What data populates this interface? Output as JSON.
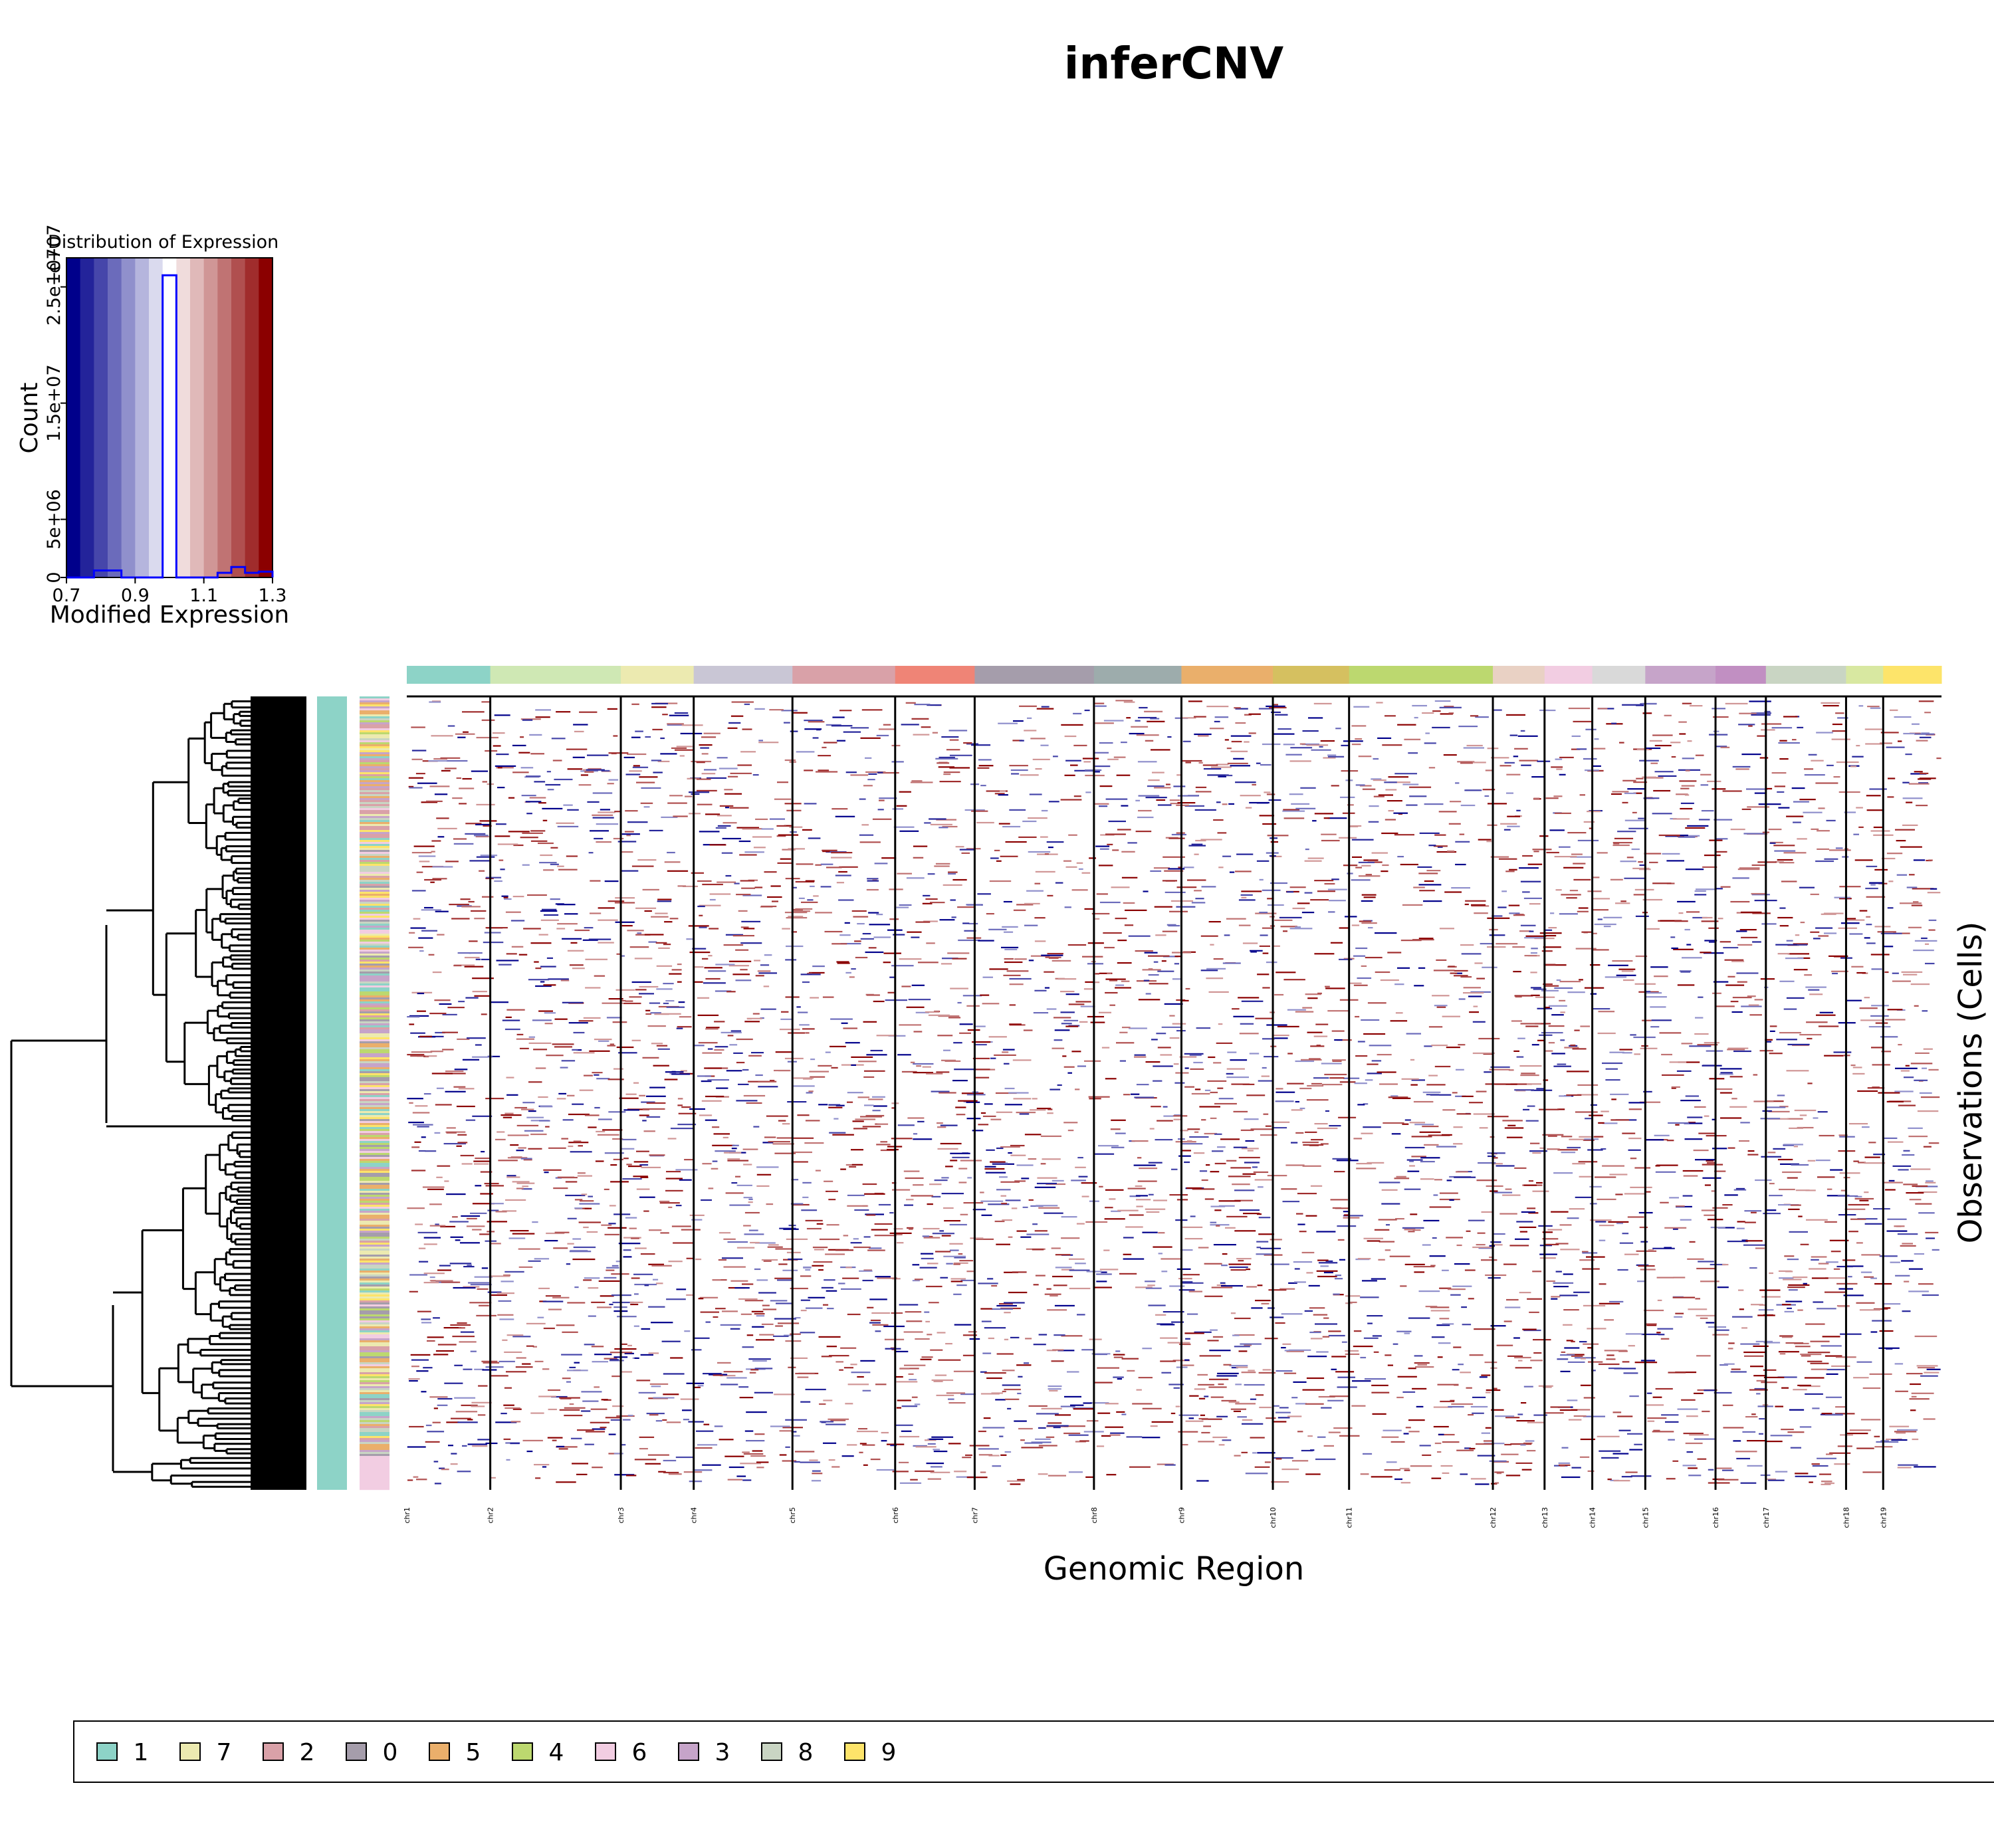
{
  "chart_data": [
    {
      "type": "bar",
      "title": "Distribution of Expression",
      "xlabel": "Modified Expression",
      "ylabel": "Count",
      "xlim": [
        0.7,
        1.3
      ],
      "ylim": [
        0,
        27500000
      ],
      "x_ticks": [
        0.7,
        0.9,
        1.1,
        1.3
      ],
      "x_tick_labels": [
        "0.7",
        "0.9",
        "1.1",
        "1.3"
      ],
      "y_ticks": [
        0,
        5000000,
        15000000,
        25000000
      ],
      "y_tick_labels": [
        "0",
        "5e+06",
        "1.5e+07",
        "2.5e+07"
      ],
      "y_tick_overlap_label": "1e+07",
      "colorbar": [
        "#00008b",
        "#23239a",
        "#4646aa",
        "#6b6bbb",
        "#9090cc",
        "#b5b5dd",
        "#dadaee",
        "#ffffff",
        "#f0dcdc",
        "#e0b9b9",
        "#d09696",
        "#c07373",
        "#b04f4f",
        "#a02c2c",
        "#8b0000"
      ],
      "histogram": {
        "line_color": "#0000ff",
        "bins": [
          0.7,
          0.74,
          0.78,
          0.82,
          0.86,
          0.9,
          0.94,
          0.98,
          1.02,
          1.06,
          1.1,
          1.14,
          1.18,
          1.22,
          1.26,
          1.3
        ],
        "counts": [
          0,
          0,
          600000,
          600000,
          0,
          0,
          0,
          26000000,
          0,
          0,
          0,
          400000,
          900000,
          400000,
          500000
        ]
      }
    },
    {
      "type": "heatmap",
      "title": "inferCNV",
      "xlabel": "Genomic Region",
      "ylabel": "Observations (Cells)",
      "color_scale": {
        "low": "#00008b",
        "mid": "#ffffff",
        "high": "#8b0000",
        "range": [
          0.7,
          1.3
        ]
      },
      "chromosomes": [
        {
          "name": "chr1",
          "span": 1.26,
          "color": "#8dd3c7"
        },
        {
          "name": "chr2",
          "span": 1.97,
          "color": "#cfe8b4"
        },
        {
          "name": "chr3",
          "span": 1.1,
          "color": "#eceab0"
        },
        {
          "name": "chr4",
          "span": 1.49,
          "color": "#c9c6d5"
        },
        {
          "name": "chr5",
          "span": 1.55,
          "color": "#d9a1a8"
        },
        {
          "name": "chr6",
          "span": 1.2,
          "color": "#ef8476"
        },
        {
          "name": "chr7",
          "span": 1.8,
          "color": "#a59dab"
        },
        {
          "name": "chr8",
          "span": 1.32,
          "color": "#9dacac"
        },
        {
          "name": "chr9",
          "span": 1.38,
          "color": "#eaaf6b"
        },
        {
          "name": "chr10",
          "span": 1.15,
          "color": "#d5c060"
        },
        {
          "name": "chr11",
          "span": 2.17,
          "color": "#bcd86f"
        },
        {
          "name": "chr12",
          "span": 0.78,
          "color": "#e9d1c4"
        },
        {
          "name": "chr13",
          "span": 0.72,
          "color": "#f2cde2"
        },
        {
          "name": "chr14",
          "span": 0.8,
          "color": "#d9d9d9"
        },
        {
          "name": "chr15",
          "span": 1.06,
          "color": "#c6a4c9"
        },
        {
          "name": "chr16",
          "span": 0.76,
          "color": "#c18fc2"
        },
        {
          "name": "chr17",
          "span": 1.21,
          "color": "#c9d5c3"
        },
        {
          "name": "chr18",
          "span": 0.56,
          "color": "#d8e8a1"
        },
        {
          "name": "chr19",
          "span": 0.88,
          "color": "#fde46a"
        }
      ],
      "annotation_colors": [
        "#8dd3c7",
        "#eceab0",
        "#d9a1a8",
        "#a59dab",
        "#eaaf6b",
        "#bcd86f",
        "#f2cde2",
        "#c6a4c9",
        "#c9d5c3",
        "#fde46a"
      ]
    }
  ],
  "legend": {
    "entries": [
      {
        "label": "1",
        "color": "#8dd3c7"
      },
      {
        "label": "7",
        "color": "#eceab0"
      },
      {
        "label": "2",
        "color": "#d9a1a8"
      },
      {
        "label": "0",
        "color": "#a59dab"
      },
      {
        "label": "5",
        "color": "#eaaf6b"
      },
      {
        "label": "4",
        "color": "#bcd86f"
      },
      {
        "label": "6",
        "color": "#f2cde2"
      },
      {
        "label": "3",
        "color": "#c6a4c9"
      },
      {
        "label": "8",
        "color": "#c9d5c3"
      },
      {
        "label": "9",
        "color": "#fde46a"
      }
    ]
  }
}
